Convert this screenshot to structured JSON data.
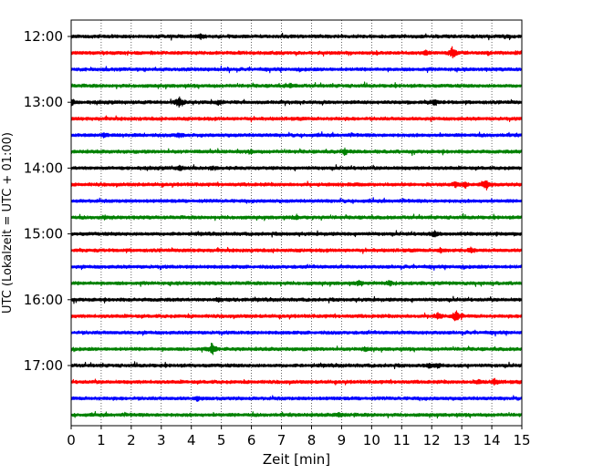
{
  "chart_data": {
    "type": "line",
    "title": "",
    "xlabel": "Zeit  [min]",
    "ylabel": "UTC (Lokalzeit = UTC + 01:00)",
    "xlim": [
      0,
      15
    ],
    "x_ticks": [
      "0",
      "1",
      "2",
      "3",
      "4",
      "5",
      "6",
      "7",
      "8",
      "9",
      "10",
      "11",
      "12",
      "13",
      "14",
      "15"
    ],
    "y_tick_labels": [
      "12:00",
      "13:00",
      "14:00",
      "15:00",
      "16:00",
      "17:00"
    ],
    "grid": "vertical dotted lines at each minute",
    "trace_colors": [
      "#000000",
      "#ff0000",
      "#0000ff",
      "#008000"
    ],
    "traces": [
      {
        "start": "12:00",
        "events": [
          {
            "t": 4.3,
            "amp": 0.35
          }
        ]
      },
      {
        "start": "12:15",
        "events": [
          {
            "t": 12.7,
            "amp": 0.9
          },
          {
            "t": 11.8,
            "amp": 0.25
          }
        ]
      },
      {
        "start": "12:30",
        "events": []
      },
      {
        "start": "12:45",
        "events": [
          {
            "t": 7.3,
            "amp": 0.2
          }
        ]
      },
      {
        "start": "13:00",
        "events": [
          {
            "t": 0.0,
            "amp": 0.6
          },
          {
            "t": 3.6,
            "amp": 0.9
          },
          {
            "t": 4.9,
            "amp": 0.3
          },
          {
            "t": 12.1,
            "amp": 0.35
          }
        ]
      },
      {
        "start": "13:15",
        "events": []
      },
      {
        "start": "13:30",
        "events": [
          {
            "t": 1.1,
            "amp": 0.3
          },
          {
            "t": 3.6,
            "amp": 0.3
          }
        ]
      },
      {
        "start": "13:45",
        "events": [
          {
            "t": 9.1,
            "amp": 0.35
          },
          {
            "t": 6.0,
            "amp": 0.2
          }
        ]
      },
      {
        "start": "14:00",
        "events": [
          {
            "t": 3.6,
            "amp": 0.3
          },
          {
            "t": 4.7,
            "amp": 0.2
          }
        ]
      },
      {
        "start": "14:15",
        "events": [
          {
            "t": 13.8,
            "amp": 0.7
          },
          {
            "t": 12.8,
            "amp": 0.35
          },
          {
            "t": 13.1,
            "amp": 0.3
          }
        ]
      },
      {
        "start": "14:30",
        "events": []
      },
      {
        "start": "14:45",
        "events": [
          {
            "t": 1.1,
            "amp": 0.2
          },
          {
            "t": 7.5,
            "amp": 0.2
          }
        ]
      },
      {
        "start": "15:00",
        "events": [
          {
            "t": 12.1,
            "amp": 0.35
          }
        ]
      },
      {
        "start": "15:15",
        "events": [
          {
            "t": 13.3,
            "amp": 0.3
          },
          {
            "t": 12.3,
            "amp": 0.2
          }
        ]
      },
      {
        "start": "15:30",
        "events": []
      },
      {
        "start": "15:45",
        "events": [
          {
            "t": 9.6,
            "amp": 0.3
          },
          {
            "t": 10.6,
            "amp": 0.35
          }
        ]
      },
      {
        "start": "16:00",
        "events": [
          {
            "t": 4.9,
            "amp": 0.2
          }
        ]
      },
      {
        "start": "16:15",
        "events": [
          {
            "t": 12.8,
            "amp": 0.7
          },
          {
            "t": 12.2,
            "amp": 0.5
          }
        ]
      },
      {
        "start": "16:30",
        "events": []
      },
      {
        "start": "16:45",
        "events": [
          {
            "t": 4.7,
            "amp": 0.9
          },
          {
            "t": 9.8,
            "amp": 0.2
          }
        ]
      },
      {
        "start": "17:00",
        "events": [
          {
            "t": 11.9,
            "amp": 0.3
          },
          {
            "t": 12.2,
            "amp": 0.25
          }
        ]
      },
      {
        "start": "17:15",
        "events": [
          {
            "t": 14.1,
            "amp": 0.35
          },
          {
            "t": 13.6,
            "amp": 0.2
          }
        ]
      },
      {
        "start": "17:30",
        "events": [
          {
            "t": 4.2,
            "amp": 0.2
          }
        ]
      },
      {
        "start": "17:45",
        "events": [
          {
            "t": 8.9,
            "amp": 0.3
          }
        ]
      }
    ]
  }
}
